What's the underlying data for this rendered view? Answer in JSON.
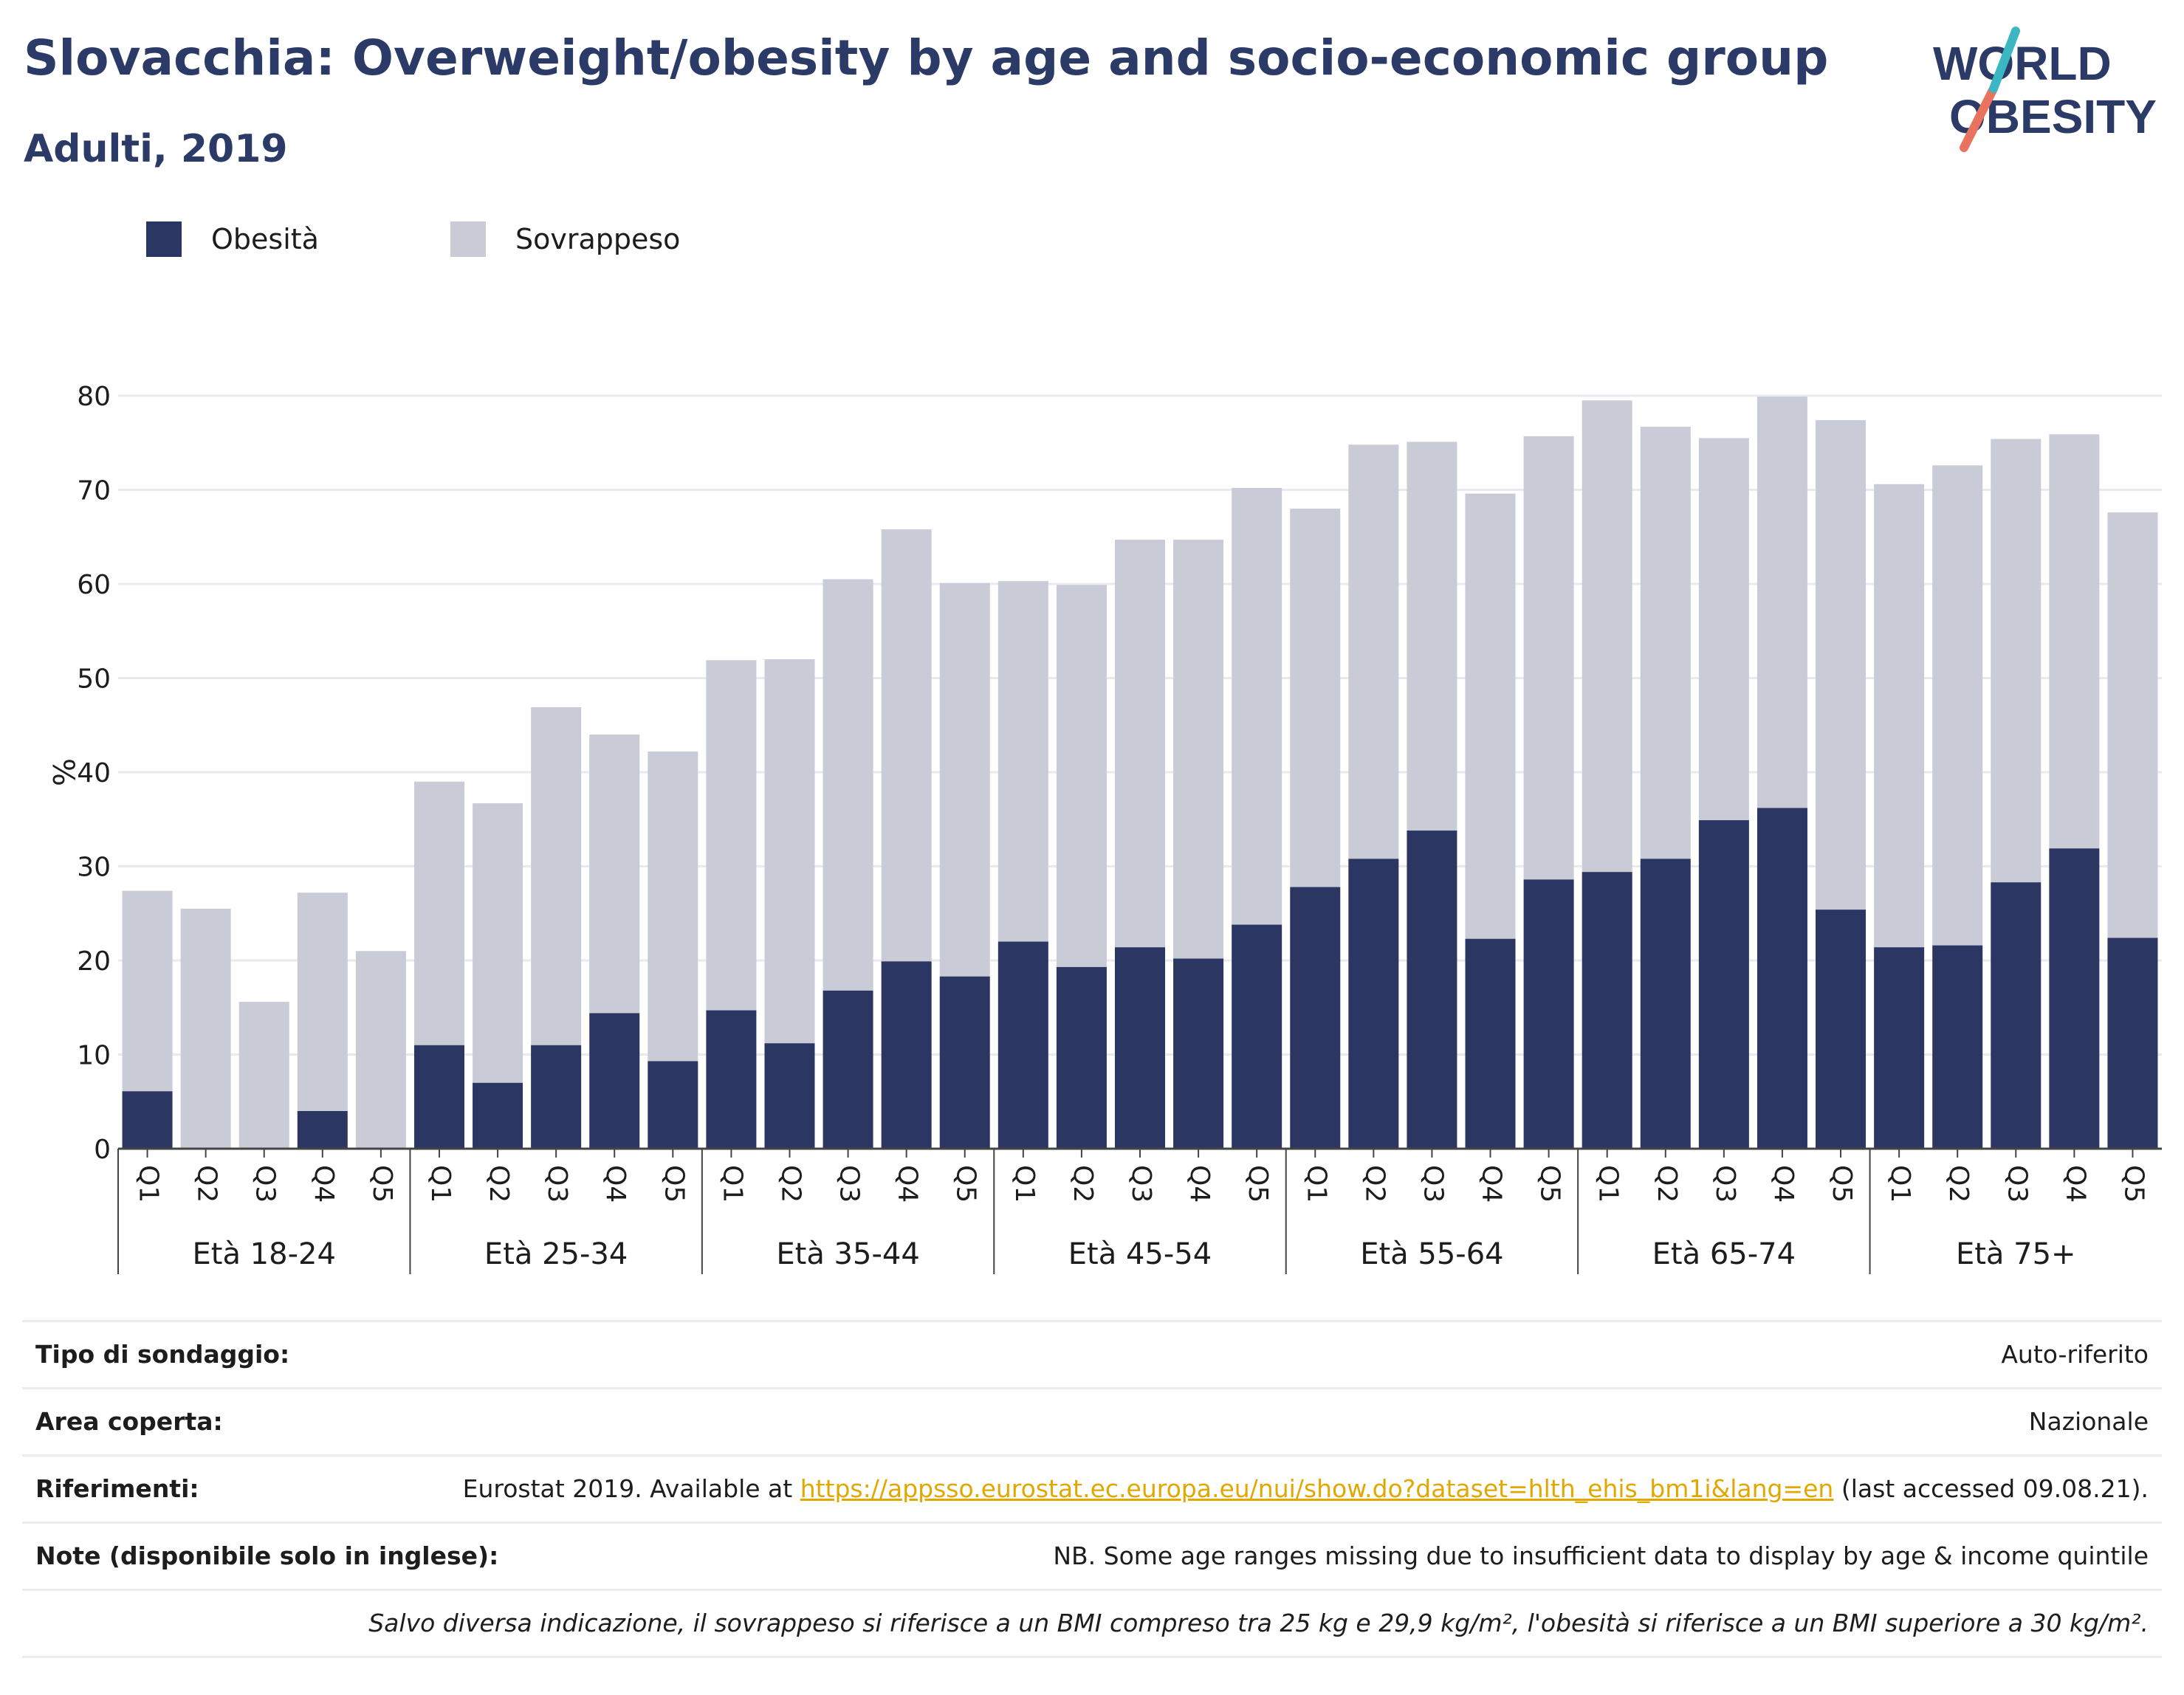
{
  "header": {
    "title": "Slovacchia: Overweight/obesity by age and socio-economic group",
    "subtitle": "Adulti, 2019",
    "logo_text_line1": "WORLD",
    "logo_text_line2": "OBESITY"
  },
  "colors": {
    "title": "#2b3a67",
    "obesity": "#2b3663",
    "overweight": "#c9cbd7",
    "logo_navy": "#2b3a67",
    "logo_teal": "#3bb7c4",
    "logo_coral": "#e8735f",
    "link": "#e0a800"
  },
  "legend": {
    "obesity": "Obesità",
    "overweight": "Sovrappeso"
  },
  "chart_data": {
    "type": "bar",
    "stacked": true,
    "ylabel": "%",
    "ylim": [
      0,
      80
    ],
    "yticks": [
      0,
      10,
      20,
      30,
      40,
      50,
      60,
      70,
      80
    ],
    "grid": true,
    "legend_position": "top-left",
    "groups": [
      {
        "label": "Età 18-24",
        "quintiles": [
          "Q1",
          "Q2",
          "Q3",
          "Q4",
          "Q5"
        ],
        "obesity": [
          6.1,
          0,
          0,
          4.0,
          0
        ],
        "total": [
          27.4,
          25.5,
          15.6,
          27.2,
          21.0
        ]
      },
      {
        "label": "Età 25-34",
        "quintiles": [
          "Q1",
          "Q2",
          "Q3",
          "Q4",
          "Q5"
        ],
        "obesity": [
          11.0,
          7.0,
          11.0,
          14.4,
          9.3
        ],
        "total": [
          39.0,
          36.7,
          46.9,
          44.0,
          42.2
        ]
      },
      {
        "label": "Età 35-44",
        "quintiles": [
          "Q1",
          "Q2",
          "Q3",
          "Q4",
          "Q5"
        ],
        "obesity": [
          14.7,
          11.2,
          16.8,
          19.9,
          18.3
        ],
        "total": [
          51.9,
          52.0,
          60.5,
          65.8,
          60.1
        ]
      },
      {
        "label": "Età 45-54",
        "quintiles": [
          "Q1",
          "Q2",
          "Q3",
          "Q4",
          "Q5"
        ],
        "obesity": [
          22.0,
          19.3,
          21.4,
          20.2,
          23.8
        ],
        "total": [
          60.3,
          59.9,
          64.7,
          64.7,
          70.2
        ]
      },
      {
        "label": "Età 55-64",
        "quintiles": [
          "Q1",
          "Q2",
          "Q3",
          "Q4",
          "Q5"
        ],
        "obesity": [
          27.8,
          30.8,
          33.8,
          22.3,
          28.6
        ],
        "total": [
          68.0,
          74.8,
          75.1,
          69.6,
          75.7
        ]
      },
      {
        "label": "Età 65-74",
        "quintiles": [
          "Q1",
          "Q2",
          "Q3",
          "Q4",
          "Q5"
        ],
        "obesity": [
          29.4,
          30.8,
          34.9,
          36.2,
          25.4
        ],
        "total": [
          79.5,
          76.7,
          75.5,
          79.9,
          77.4
        ]
      },
      {
        "label": "Età 75+",
        "quintiles": [
          "Q1",
          "Q2",
          "Q3",
          "Q4",
          "Q5"
        ],
        "obesity": [
          21.4,
          21.6,
          28.3,
          31.9,
          22.4
        ],
        "total": [
          70.6,
          72.6,
          75.4,
          75.9,
          67.6
        ]
      }
    ]
  },
  "info": {
    "survey_label": "Tipo di sondaggio:",
    "survey_value": "Auto-riferito",
    "area_label": "Area coperta:",
    "area_value": "Nazionale",
    "refs_label": "Riferimenti:",
    "refs_prefix": "Eurostat 2019. Available at ",
    "refs_link": "https://appsso.eurostat.ec.europa.eu/nui/show.do?dataset=hlth_ehis_bm1i&lang=en",
    "refs_suffix": " (last accessed 09.08.21).",
    "notes_label": "Note (disponibile solo in inglese):",
    "notes_value": "NB. Some age ranges missing due to insufficient data to display by age & income quintile",
    "definition": "Salvo diversa indicazione, il sovrappeso si riferisce a un BMI compreso tra 25 kg e 29,9 kg/m², l'obesità si riferisce a un BMI superiore a 30 kg/m²."
  }
}
